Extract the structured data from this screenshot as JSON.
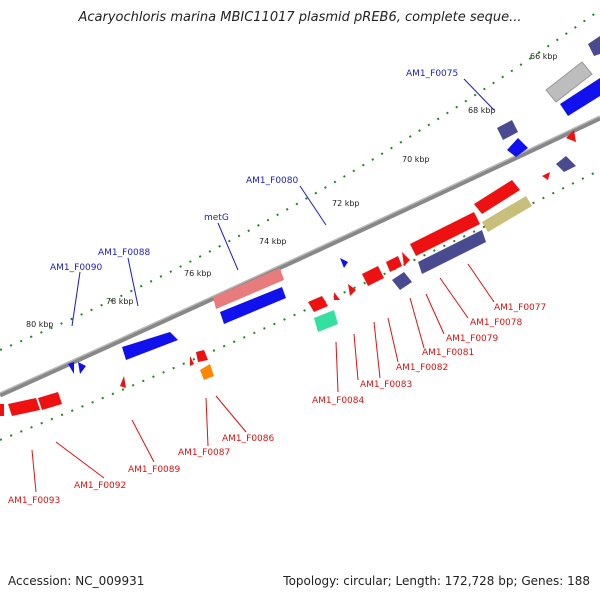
{
  "title": "Acaryochloris marina MBIC11017 plasmid pREB6, complete seque...",
  "accession": "Accession: NC_009931",
  "summary": "Topology: circular; Length: 172,728 bp; Genes: 188",
  "kbp_labels": [
    "66 kbp",
    "68 kbp",
    "70 kbp",
    "72 kbp",
    "74 kbp",
    "76 kbp",
    "78 kbp",
    "80 kbp"
  ],
  "gene_labels_top": [
    "AM1_F0075",
    "AM1_F0080",
    "metG",
    "AM1_F0088",
    "AM1_F0090"
  ],
  "gene_labels_bottom": [
    "AM1_F0077",
    "AM1_F0078",
    "AM1_F0079",
    "AM1_F0081",
    "AM1_F0082",
    "AM1_F0083",
    "AM1_F0084",
    "AM1_F0086",
    "AM1_F0087",
    "AM1_F0089",
    "AM1_F0092",
    "AM1_F0093"
  ],
  "colors": {
    "forward_gene": "#1111ee",
    "reverse_gene": "#ee1111",
    "dark_gene": "#4a4a90",
    "backbone": "#777777",
    "tick": "#1a8a1a",
    "label_blue": "#1a1acc",
    "label_red": "#dd1111"
  }
}
